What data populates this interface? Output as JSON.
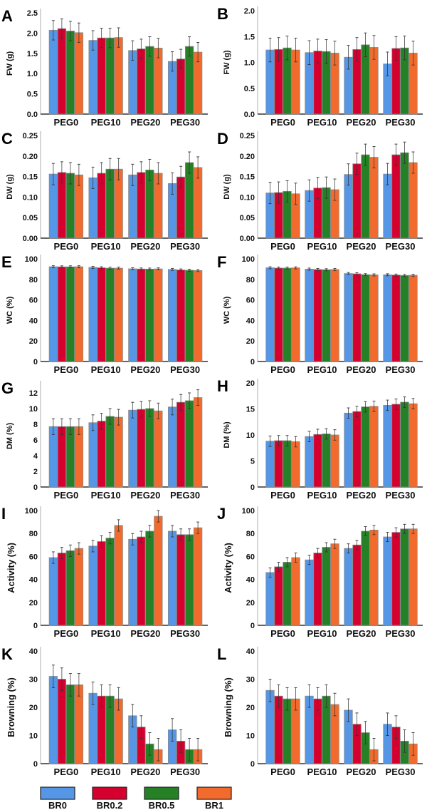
{
  "legend": {
    "items": [
      {
        "label": "BR0",
        "color": "#5596e6"
      },
      {
        "label": "BR0.2",
        "color": "#d6002f"
      },
      {
        "label": "BR0.5",
        "color": "#258026"
      },
      {
        "label": "BR1",
        "color": "#f26b2c"
      }
    ]
  },
  "chart_data": [
    {
      "panel": "A",
      "type": "bar",
      "ylabel": "FW (g)",
      "ylim": [
        0,
        2.5
      ],
      "yticks": [
        "0.0",
        "0.5",
        "1.0",
        "1.5",
        "2.0",
        "2.5"
      ],
      "categories": [
        "PEG0",
        "PEG10",
        "PEG20",
        "PEG30"
      ],
      "series": [
        {
          "name": "BR0",
          "values": [
            2.07,
            1.82,
            1.57,
            1.3
          ],
          "err": [
            0.24,
            0.24,
            0.24,
            0.24
          ]
        },
        {
          "name": "BR0.2",
          "values": [
            2.11,
            1.88,
            1.61,
            1.36
          ],
          "err": [
            0.24,
            0.24,
            0.24,
            0.24
          ]
        },
        {
          "name": "BR0.5",
          "values": [
            2.05,
            1.88,
            1.67,
            1.67
          ],
          "err": [
            0.24,
            0.24,
            0.24,
            0.24
          ]
        },
        {
          "name": "BR1",
          "values": [
            2.01,
            1.89,
            1.63,
            1.53
          ],
          "err": [
            0.24,
            0.24,
            0.24,
            0.24
          ]
        }
      ]
    },
    {
      "panel": "B",
      "type": "bar",
      "ylabel": "FW (g)",
      "ylim": [
        0,
        2.0
      ],
      "yticks": [
        "0.0",
        "0.5",
        "1.0",
        "1.5",
        "2.0"
      ],
      "categories": [
        "PEG0",
        "PEG10",
        "PEG20",
        "PEG30"
      ],
      "series": [
        {
          "name": "BR0",
          "values": [
            1.24,
            1.19,
            1.1,
            0.97
          ],
          "err": [
            0.23,
            0.23,
            0.23,
            0.23
          ]
        },
        {
          "name": "BR0.2",
          "values": [
            1.25,
            1.22,
            1.25,
            1.27
          ],
          "err": [
            0.23,
            0.23,
            0.23,
            0.23
          ]
        },
        {
          "name": "BR0.5",
          "values": [
            1.28,
            1.21,
            1.34,
            1.28
          ],
          "err": [
            0.23,
            0.23,
            0.23,
            0.23
          ]
        },
        {
          "name": "BR1",
          "values": [
            1.24,
            1.18,
            1.29,
            1.18
          ],
          "err": [
            0.23,
            0.23,
            0.23,
            0.23
          ]
        }
      ]
    },
    {
      "panel": "C",
      "type": "bar",
      "ylabel": "DW (g)",
      "ylim": [
        0,
        0.25
      ],
      "yticks": [
        "0.00",
        "0.05",
        "0.10",
        "0.15",
        "0.20",
        "0.25"
      ],
      "categories": [
        "PEG0",
        "PEG10",
        "PEG20",
        "PEG30"
      ],
      "series": [
        {
          "name": "BR0",
          "values": [
            0.156,
            0.147,
            0.154,
            0.133
          ],
          "err": [
            0.026,
            0.026,
            0.026,
            0.026
          ]
        },
        {
          "name": "BR0.2",
          "values": [
            0.16,
            0.158,
            0.16,
            0.149
          ],
          "err": [
            0.026,
            0.026,
            0.026,
            0.026
          ]
        },
        {
          "name": "BR0.5",
          "values": [
            0.158,
            0.168,
            0.166,
            0.184
          ],
          "err": [
            0.026,
            0.026,
            0.026,
            0.026
          ]
        },
        {
          "name": "BR1",
          "values": [
            0.154,
            0.168,
            0.158,
            0.172
          ],
          "err": [
            0.026,
            0.026,
            0.026,
            0.026
          ]
        }
      ]
    },
    {
      "panel": "D",
      "type": "bar",
      "ylabel": "DW (g)",
      "ylim": [
        0,
        0.25
      ],
      "yticks": [
        "0.00",
        "0.05",
        "0.10",
        "0.15",
        "0.20",
        "0.25"
      ],
      "categories": [
        "PEG0",
        "PEG10",
        "PEG20",
        "PEG30"
      ],
      "series": [
        {
          "name": "BR0",
          "values": [
            0.11,
            0.116,
            0.155,
            0.156
          ],
          "err": [
            0.026,
            0.026,
            0.026,
            0.026
          ]
        },
        {
          "name": "BR0.2",
          "values": [
            0.111,
            0.122,
            0.181,
            0.203
          ],
          "err": [
            0.026,
            0.026,
            0.026,
            0.026
          ]
        },
        {
          "name": "BR0.5",
          "values": [
            0.114,
            0.123,
            0.203,
            0.208
          ],
          "err": [
            0.026,
            0.026,
            0.026,
            0.026
          ]
        },
        {
          "name": "BR1",
          "values": [
            0.108,
            0.118,
            0.197,
            0.184
          ],
          "err": [
            0.026,
            0.026,
            0.026,
            0.026
          ]
        }
      ]
    },
    {
      "panel": "E",
      "type": "bar",
      "ylabel": "WC (%)",
      "ylim": [
        0,
        100
      ],
      "yticks": [
        "0",
        "20",
        "40",
        "60",
        "80",
        "100"
      ],
      "categories": [
        "PEG0",
        "PEG10",
        "PEG20",
        "PEG30"
      ],
      "series": [
        {
          "name": "BR0",
          "values": [
            92.3,
            91.7,
            90.3,
            89.7
          ],
          "err": [
            1.0,
            1.0,
            1.0,
            1.0
          ]
        },
        {
          "name": "BR0.2",
          "values": [
            92.2,
            91.3,
            90.1,
            89.2
          ],
          "err": [
            1.0,
            1.0,
            1.0,
            1.0
          ]
        },
        {
          "name": "BR0.5",
          "values": [
            92.2,
            90.9,
            90.0,
            88.9
          ],
          "err": [
            1.0,
            1.0,
            1.0,
            1.0
          ]
        },
        {
          "name": "BR1",
          "values": [
            92.3,
            90.9,
            90.2,
            88.6
          ],
          "err": [
            1.0,
            1.0,
            1.0,
            1.0
          ]
        }
      ]
    },
    {
      "panel": "F",
      "type": "bar",
      "ylabel": "WC (%)",
      "ylim": [
        0,
        100
      ],
      "yticks": [
        "0",
        "20",
        "40",
        "60",
        "80",
        "100"
      ],
      "categories": [
        "PEG0",
        "PEG10",
        "PEG20",
        "PEG30"
      ],
      "series": [
        {
          "name": "BR0",
          "values": [
            91.3,
            90.0,
            85.7,
            84.5
          ],
          "err": [
            1.0,
            1.0,
            1.0,
            1.0
          ]
        },
        {
          "name": "BR0.2",
          "values": [
            91.0,
            89.6,
            85.4,
            84.2
          ],
          "err": [
            1.0,
            1.0,
            1.0,
            1.0
          ]
        },
        {
          "name": "BR0.5",
          "values": [
            91.0,
            89.4,
            84.6,
            83.8
          ],
          "err": [
            1.0,
            1.0,
            1.0,
            1.0
          ]
        },
        {
          "name": "BR1",
          "values": [
            91.2,
            89.6,
            84.4,
            84.0
          ],
          "err": [
            1.0,
            1.0,
            1.0,
            1.0
          ]
        }
      ]
    },
    {
      "panel": "G",
      "type": "bar",
      "ylabel": "DM (%)",
      "ylim": [
        0,
        13
      ],
      "yticks": [
        "0",
        "2",
        "4",
        "6",
        "8",
        "10",
        "12"
      ],
      "categories": [
        "PEG0",
        "PEG10",
        "PEG20",
        "PEG30"
      ],
      "series": [
        {
          "name": "BR0",
          "values": [
            7.7,
            8.2,
            9.8,
            10.2
          ],
          "err": [
            1.0,
            1.0,
            1.0,
            1.0
          ]
        },
        {
          "name": "BR0.2",
          "values": [
            7.7,
            8.4,
            9.9,
            10.8
          ],
          "err": [
            1.0,
            1.0,
            1.0,
            1.0
          ]
        },
        {
          "name": "BR0.5",
          "values": [
            7.7,
            9.0,
            10.0,
            11.0
          ],
          "err": [
            1.0,
            1.0,
            1.0,
            1.0
          ]
        },
        {
          "name": "BR1",
          "values": [
            7.7,
            8.9,
            9.7,
            11.4
          ],
          "err": [
            1.0,
            1.0,
            1.0,
            1.0
          ]
        }
      ]
    },
    {
      "panel": "H",
      "type": "bar",
      "ylabel": "DM (%)",
      "ylim": [
        0,
        20
      ],
      "yticks": [
        "0",
        "5",
        "10",
        "15",
        "20"
      ],
      "categories": [
        "PEG0",
        "PEG10",
        "PEG20",
        "PEG30"
      ],
      "series": [
        {
          "name": "BR0",
          "values": [
            8.8,
            9.7,
            14.2,
            15.7
          ],
          "err": [
            1.0,
            1.0,
            1.0,
            1.0
          ]
        },
        {
          "name": "BR0.2",
          "values": [
            8.9,
            10.1,
            14.5,
            15.9
          ],
          "err": [
            1.0,
            1.0,
            1.0,
            1.0
          ]
        },
        {
          "name": "BR0.5",
          "values": [
            8.9,
            10.2,
            15.4,
            16.3
          ],
          "err": [
            1.0,
            1.0,
            1.0,
            1.0
          ]
        },
        {
          "name": "BR1",
          "values": [
            8.7,
            10.0,
            15.5,
            16.0
          ],
          "err": [
            1.0,
            1.0,
            1.0,
            1.0
          ]
        }
      ]
    },
    {
      "panel": "I",
      "type": "bar",
      "ylabel": "Activity (%)",
      "ylim": [
        0,
        100
      ],
      "yticks": [
        "0",
        "20",
        "40",
        "60",
        "80",
        "100"
      ],
      "categories": [
        "PEG0",
        "PEG10",
        "PEG20",
        "PEG30"
      ],
      "series": [
        {
          "name": "BR0",
          "values": [
            59,
            69,
            75,
            82
          ],
          "err": [
            5,
            5,
            5,
            5
          ]
        },
        {
          "name": "BR0.2",
          "values": [
            63,
            73,
            77,
            79
          ],
          "err": [
            5,
            5,
            5,
            5
          ]
        },
        {
          "name": "BR0.5",
          "values": [
            65,
            76,
            82,
            79
          ],
          "err": [
            5,
            5,
            5,
            5
          ]
        },
        {
          "name": "BR1",
          "values": [
            67,
            87,
            95,
            85
          ],
          "err": [
            5,
            5,
            5,
            5
          ]
        }
      ]
    },
    {
      "panel": "J",
      "type": "bar",
      "ylabel": "Activity (%)",
      "ylim": [
        0,
        100
      ],
      "yticks": [
        "0",
        "20",
        "40",
        "60",
        "80",
        "100"
      ],
      "categories": [
        "PEG0",
        "PEG10",
        "PEG20",
        "PEG30"
      ],
      "series": [
        {
          "name": "BR0",
          "values": [
            46,
            57,
            67,
            77
          ],
          "err": [
            4,
            4,
            4,
            4
          ]
        },
        {
          "name": "BR0.2",
          "values": [
            51,
            63,
            70,
            81
          ],
          "err": [
            4,
            4,
            4,
            4
          ]
        },
        {
          "name": "BR0.5",
          "values": [
            55,
            68,
            82,
            84
          ],
          "err": [
            4,
            4,
            4,
            4
          ]
        },
        {
          "name": "BR1",
          "values": [
            59,
            71,
            83,
            84
          ],
          "err": [
            4,
            4,
            4,
            4
          ]
        }
      ]
    },
    {
      "panel": "K",
      "type": "bar",
      "ylabel": "Browning (%)",
      "ylim": [
        0,
        40
      ],
      "yticks": [
        "0",
        "10",
        "20",
        "30",
        "40"
      ],
      "categories": [
        "PEG0",
        "PEG10",
        "PEG20",
        "PEG30"
      ],
      "series": [
        {
          "name": "BR0",
          "values": [
            31,
            25,
            17,
            12
          ],
          "err": [
            4,
            4,
            4,
            4
          ]
        },
        {
          "name": "BR0.2",
          "values": [
            30,
            24,
            13,
            8
          ],
          "err": [
            4,
            4,
            4,
            4
          ]
        },
        {
          "name": "BR0.5",
          "values": [
            28,
            24,
            7,
            5
          ],
          "err": [
            4,
            4,
            4,
            4
          ]
        },
        {
          "name": "BR1",
          "values": [
            28,
            23,
            5,
            5
          ],
          "err": [
            4,
            4,
            4,
            4
          ]
        }
      ]
    },
    {
      "panel": "L",
      "type": "bar",
      "ylabel": "Browning (%)",
      "ylim": [
        0,
        40
      ],
      "yticks": [
        "0",
        "10",
        "20",
        "30",
        "40"
      ],
      "categories": [
        "PEG0",
        "PEG10",
        "PEG20",
        "PEG30"
      ],
      "series": [
        {
          "name": "BR0",
          "values": [
            26,
            24,
            19,
            14
          ],
          "err": [
            4,
            4,
            4,
            4
          ]
        },
        {
          "name": "BR0.2",
          "values": [
            24,
            23,
            14,
            13
          ],
          "err": [
            4,
            4,
            4,
            4
          ]
        },
        {
          "name": "BR0.5",
          "values": [
            23,
            24,
            11,
            8
          ],
          "err": [
            4,
            4,
            4,
            4
          ]
        },
        {
          "name": "BR1",
          "values": [
            23,
            21,
            5,
            7
          ],
          "err": [
            4,
            4,
            4,
            4
          ]
        }
      ]
    }
  ]
}
